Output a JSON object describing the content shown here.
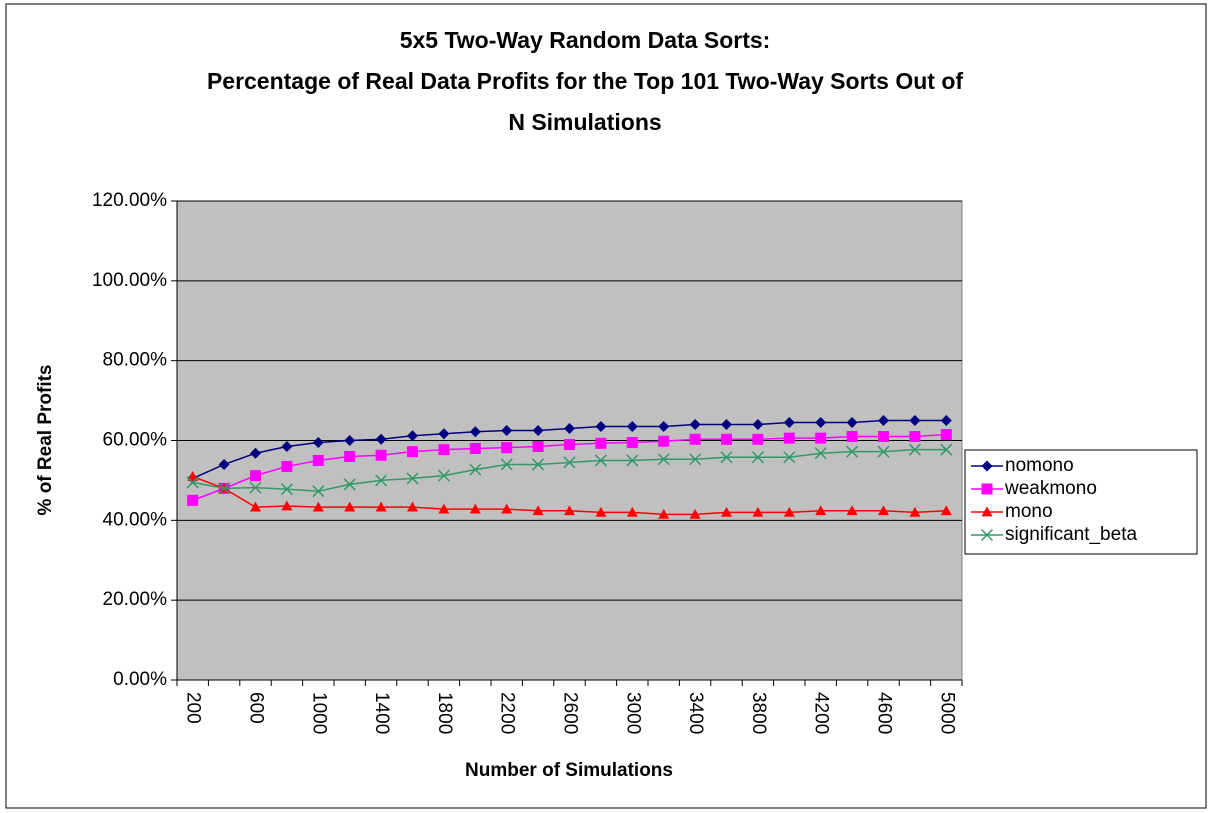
{
  "chart_data": {
    "type": "line",
    "title": [
      "5x5 Two-Way Random Data Sorts:",
      "Percentage of Real Data Profits for the Top 101 Two-Way Sorts Out of",
      "N Simulations"
    ],
    "x_label": "Number of Simulations",
    "y_label": "% of Real Profits",
    "categories": [
      "200",
      null,
      "600",
      null,
      "1000",
      null,
      "1400",
      null,
      "1800",
      null,
      "2200",
      null,
      "2600",
      null,
      "3000",
      null,
      "3400",
      null,
      "3800",
      null,
      "4200",
      null,
      "4600",
      null,
      "5000"
    ],
    "series": [
      {
        "name": "nomono",
        "color": "#000080",
        "marker": "diamond",
        "values": [
          50.5,
          54,
          56.8,
          58.5,
          59.5,
          60,
          60.3,
          61.2,
          61.7,
          62.2,
          62.5,
          62.5,
          63,
          63.5,
          63.5,
          63.5,
          64,
          64,
          64,
          64.5,
          64.5,
          64.5,
          65,
          65,
          65
        ]
      },
      {
        "name": "weakmono",
        "color": "#ff00ff",
        "marker": "square",
        "values": [
          45,
          48,
          51.2,
          53.5,
          55,
          56,
          56.3,
          57.2,
          57.7,
          58,
          58.2,
          58.5,
          59,
          59.3,
          59.5,
          59.8,
          60.3,
          60.3,
          60.3,
          60.6,
          60.6,
          61,
          61,
          61,
          61.5
        ]
      },
      {
        "name": "mono",
        "color": "#ff0000",
        "marker": "triangle",
        "values": [
          51,
          48,
          43.3,
          43.6,
          43.3,
          43.3,
          43.3,
          43.3,
          42.8,
          42.8,
          42.8,
          42.4,
          42.4,
          42,
          42,
          41.5,
          41.5,
          42,
          42,
          42,
          42.4,
          42.4,
          42.4,
          42,
          42.4
        ]
      },
      {
        "name": "significant_beta",
        "color": "#339966",
        "marker": "x",
        "values": [
          49.5,
          48,
          48.2,
          47.8,
          47.3,
          49,
          50,
          50.5,
          51.2,
          52.7,
          54,
          54,
          54.5,
          55,
          55,
          55.3,
          55.3,
          55.8,
          55.8,
          55.8,
          56.8,
          57.2,
          57.2,
          57.7,
          57.7
        ]
      }
    ],
    "ylim": [
      0,
      120
    ],
    "yticks": [
      {
        "value": 0,
        "label": "0.00%"
      },
      {
        "value": 20,
        "label": "20.00%"
      },
      {
        "value": 40,
        "label": "40.00%"
      },
      {
        "value": 60,
        "label": "60.00%"
      },
      {
        "value": 80,
        "label": "80.00%"
      },
      {
        "value": 100,
        "label": "100.00%"
      },
      {
        "value": 120,
        "label": "120.00%"
      }
    ],
    "grid": true,
    "legend": "right",
    "plot_background": "#c0c0c0"
  }
}
